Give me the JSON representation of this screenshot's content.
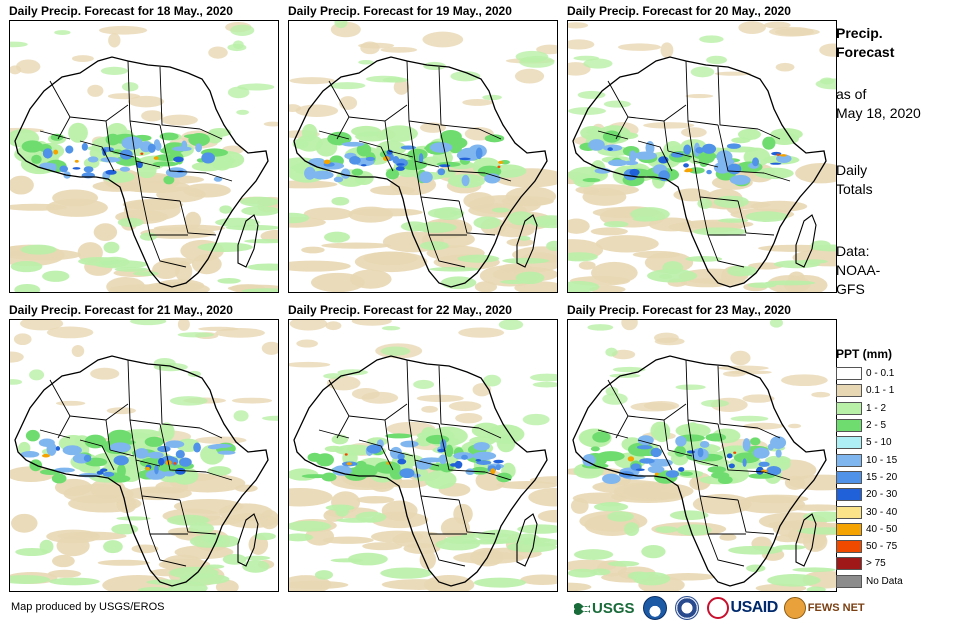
{
  "panels": [
    {
      "title": "Daily Precip. Forecast for 18 May., 2020"
    },
    {
      "title": "Daily Precip. Forecast for 19 May., 2020"
    },
    {
      "title": "Daily Precip. Forecast for 20 May., 2020"
    },
    {
      "title": "Daily Precip. Forecast for 21 May., 2020"
    },
    {
      "title": "Daily Precip. Forecast for 22 May., 2020"
    },
    {
      "title": "Daily Precip. Forecast for 23 May., 2020"
    }
  ],
  "sidebar": {
    "heading_line1": "Precip.",
    "heading_line2": "Forecast",
    "asof_line1": "as of",
    "asof_line2": "May 18, 2020",
    "totals_line1": "Daily",
    "totals_line2": "Totals",
    "data_line1": "Data:",
    "data_line2": "NOAA-",
    "data_line3": "GFS"
  },
  "legend": {
    "title": "PPT (mm)",
    "items": [
      {
        "label": "0 - 0.1",
        "color": "#ffffff"
      },
      {
        "label": "0.1 - 1",
        "color": "#e8d7b3"
      },
      {
        "label": "1 - 2",
        "color": "#b9f0a8"
      },
      {
        "label": "2 - 5",
        "color": "#6fdc6f"
      },
      {
        "label": "5 - 10",
        "color": "#aeeef5"
      },
      {
        "label": "10 - 15",
        "color": "#7fb6ef"
      },
      {
        "label": "15 - 20",
        "color": "#4f92e8"
      },
      {
        "label": "20 - 30",
        "color": "#2060d8"
      },
      {
        "label": "30 - 40",
        "color": "#fbe38a"
      },
      {
        "label": "40 - 50",
        "color": "#f5a300"
      },
      {
        "label": "50 - 75",
        "color": "#f04a00"
      },
      {
        "label": "> 75",
        "color": "#a01818"
      },
      {
        "label": "No Data",
        "color": "#8c8c8c"
      }
    ]
  },
  "footer": {
    "credit": "Map produced by USGS/EROS",
    "logos": {
      "usgs": "USGS",
      "usaid": "USAID",
      "fews": "FEWS NET"
    }
  }
}
